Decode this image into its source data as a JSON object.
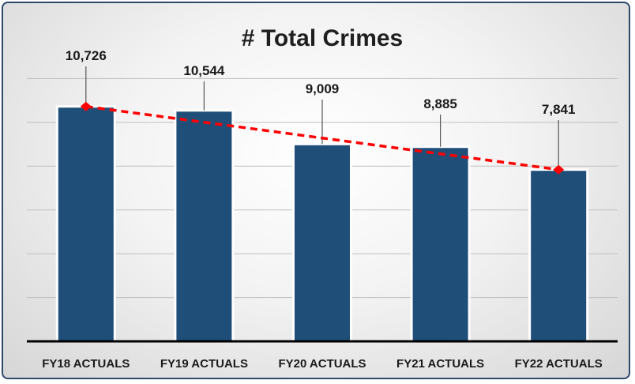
{
  "chart_data": {
    "type": "bar",
    "title": "# Total Crimes",
    "categories": [
      "FY18 ACTUALS",
      "FY19 ACTUALS",
      "FY20 ACTUALS",
      "FY21 ACTUALS",
      "FY22 ACTUALS"
    ],
    "values": [
      10726,
      10544,
      9009,
      8885,
      7841
    ],
    "value_labels": [
      "10,726",
      "10,544",
      "9,009",
      "8,885",
      "7,841"
    ],
    "ylim": [
      0,
      14000
    ],
    "grid": true,
    "legend": "none",
    "trendline": {
      "type": "linear",
      "from": 10726,
      "to": 7841,
      "color": "#ff0000",
      "style": "dashed",
      "markers": "diamond"
    },
    "colors": {
      "bar": "#1f4e79",
      "bar_outline": "#ffffff",
      "gridline": "#bfbfbf",
      "axis": "#000000",
      "trend": "#ff0000",
      "leader": "#555555"
    }
  }
}
